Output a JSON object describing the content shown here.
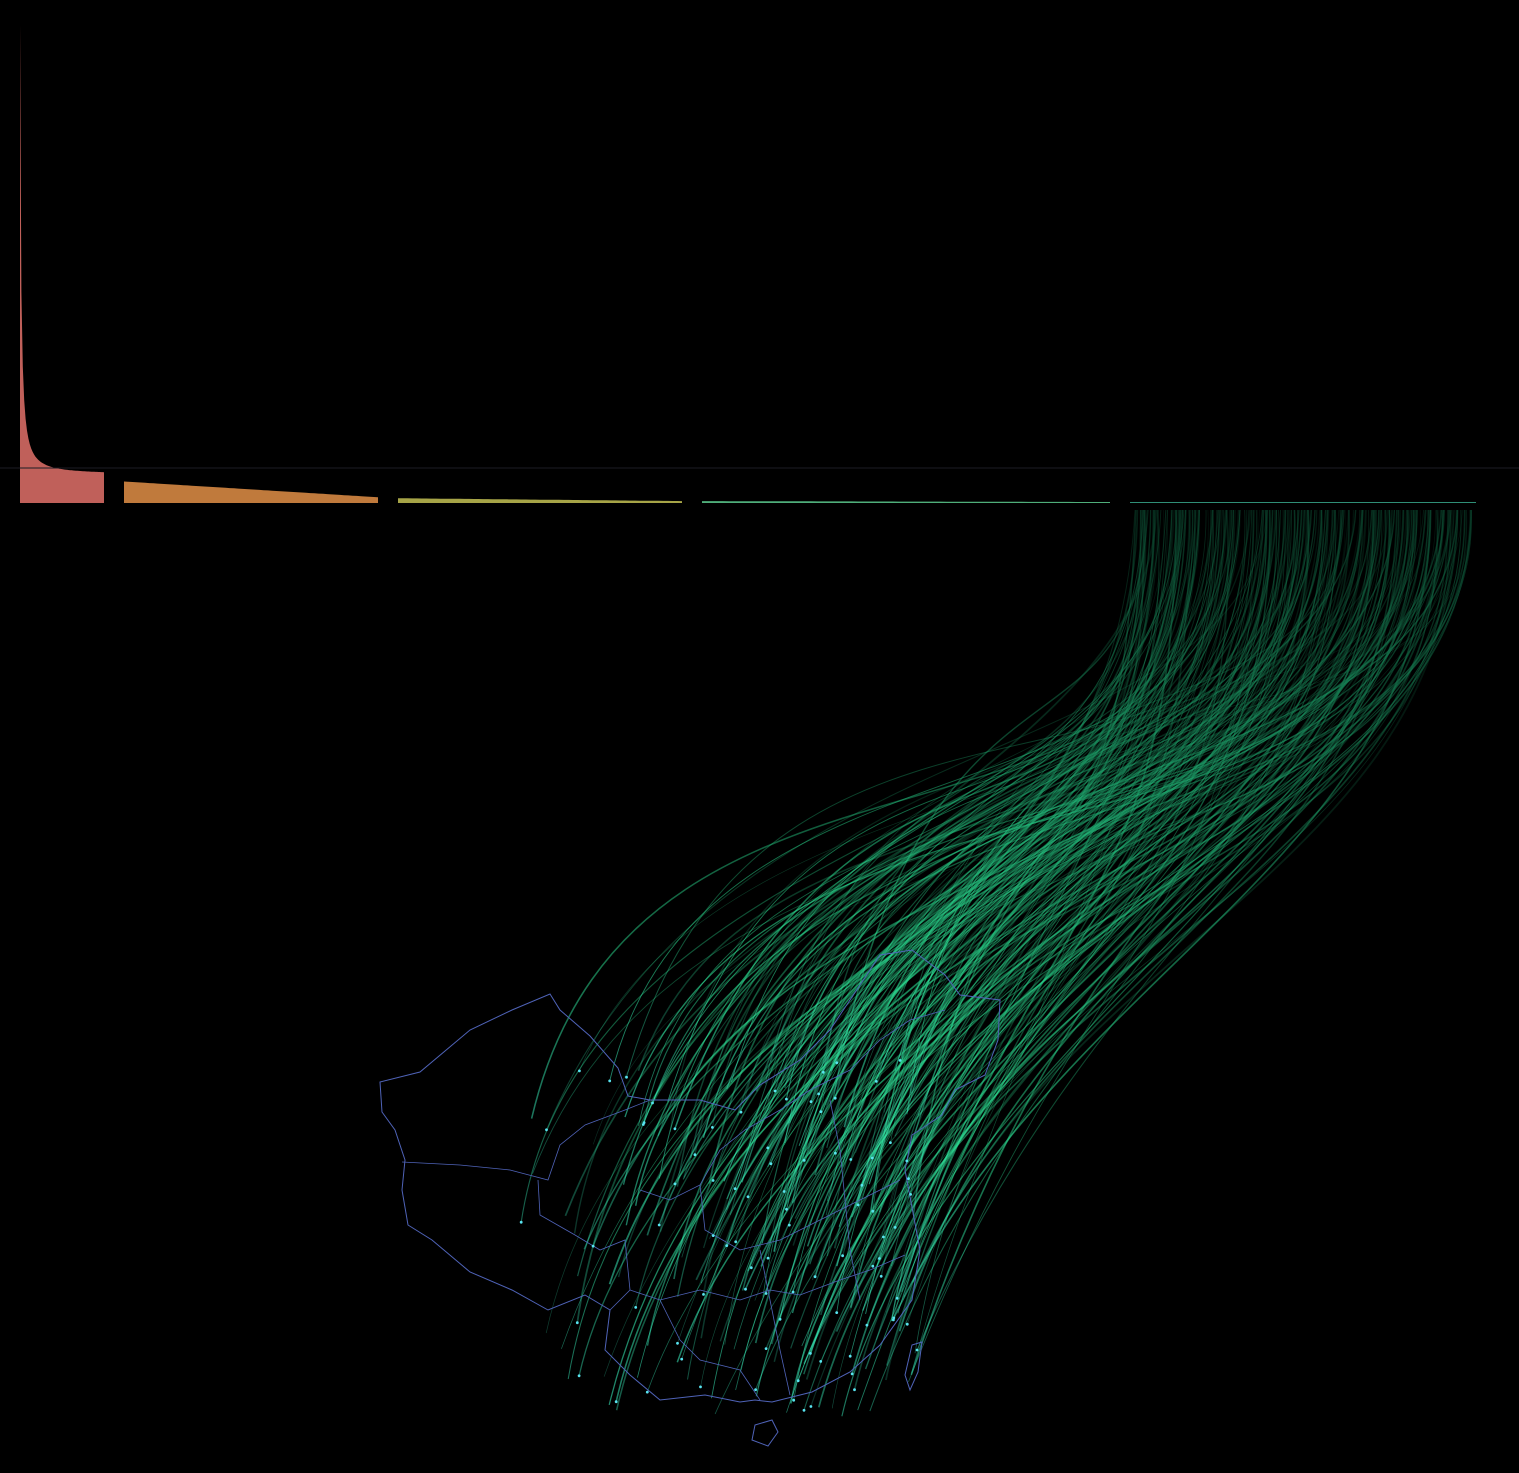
{
  "chart_data": {
    "type": "area",
    "title": "",
    "xlabel": "",
    "ylabel": "",
    "grid": false,
    "legend": "none",
    "description_note": "",
    "segments": [
      {
        "color": "#c0605a",
        "head": 1.0,
        "tail": 0.06
      },
      {
        "color": "#c07a3c",
        "head": 0.045,
        "tail": 0.012
      },
      {
        "color": "#a6a447",
        "head": 0.01,
        "tail": 0.004
      },
      {
        "color": "#4fae7a",
        "head": 0.004,
        "tail": 0.002
      },
      {
        "color": "#2f8e76",
        "head": 0.002,
        "tail": 0.001
      }
    ],
    "flow_color": "#2ee898",
    "flow_fade_color": "#0d3d2b",
    "map_border_color": "#4f63b8",
    "map_dot_color": "#58e4f0"
  }
}
